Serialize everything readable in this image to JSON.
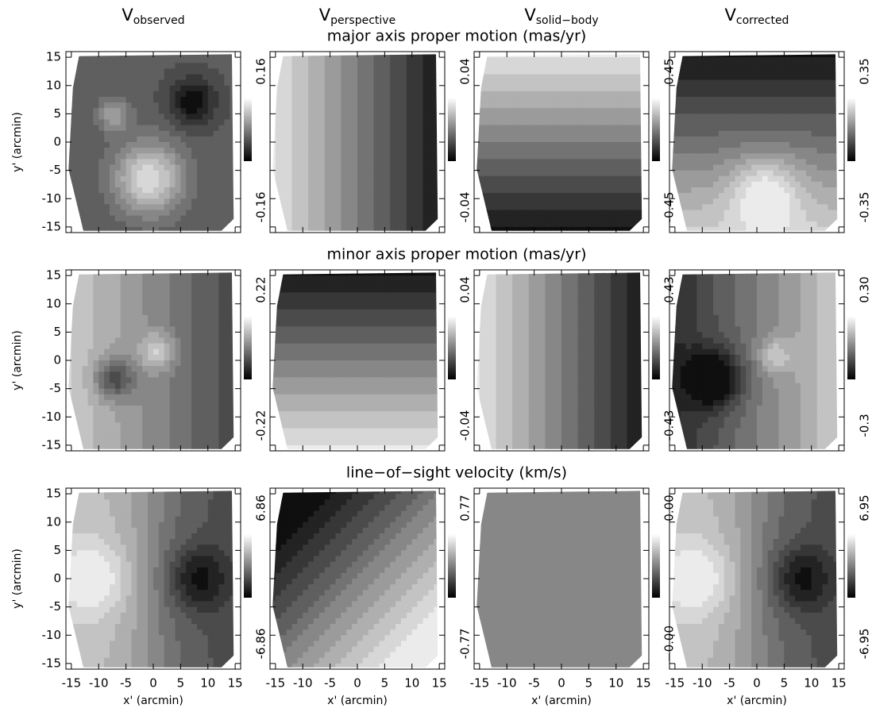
{
  "chart_data": {
    "type": "contour",
    "columns": [
      {
        "symbol": "V",
        "subscript": "observed"
      },
      {
        "symbol": "V",
        "subscript": "perspective"
      },
      {
        "symbol": "V",
        "subscript": "solid−body"
      },
      {
        "symbol": "V",
        "subscript": "corrected"
      }
    ],
    "rows": [
      {
        "title": "major axis proper motion (mas/yr)",
        "colorbars": [
          {
            "min": -0.16,
            "max": 0.16
          },
          {
            "min": -0.04,
            "max": 0.04
          },
          {
            "min": -0.45,
            "max": 0.45
          },
          {
            "min": -0.35,
            "max": 0.35
          }
        ]
      },
      {
        "title": "minor axis proper motion (mas/yr)",
        "colorbars": [
          {
            "min": -0.22,
            "max": 0.22
          },
          {
            "min": -0.04,
            "max": 0.04
          },
          {
            "min": -0.43,
            "max": 0.43
          },
          {
            "min": -0.3,
            "max": {
              "value": 0.3,
              "label": "0.30"
            }
          }
        ]
      },
      {
        "title": "line−of−sight velocity (km/s)",
        "colorbars": [
          {
            "min": -6.86,
            "max": 6.86
          },
          {
            "min": -0.77,
            "max": 0.77
          },
          {
            "min": {
              "value": 0,
              "label": "−0.00"
            },
            "max": {
              "value": 0,
              "label": "0.00"
            }
          },
          {
            "min": -6.95,
            "max": 6.95
          }
        ]
      }
    ],
    "x_label": "x' (arcmin)",
    "y_label": "y' (arcmin)",
    "xlim": [
      -16,
      16
    ],
    "ylim": [
      -16,
      16
    ],
    "xticks": [
      -15,
      -10,
      -5,
      0,
      5,
      10,
      15
    ],
    "yticks": [
      -15,
      -10,
      -5,
      0,
      5,
      10,
      15
    ]
  }
}
